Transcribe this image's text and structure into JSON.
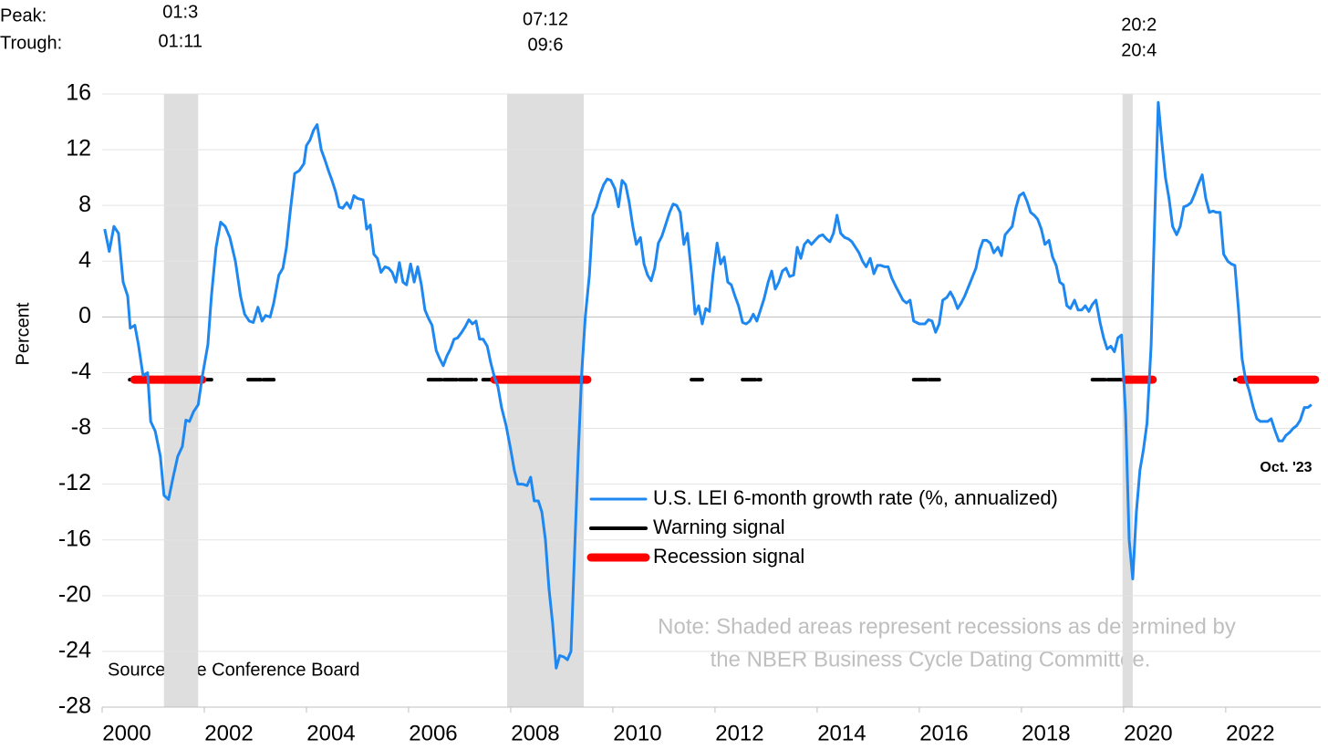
{
  "chart_data": {
    "type": "line",
    "y_label": "Percent",
    "peak_label": "Peak:",
    "trough_label": "Trough:",
    "source": "Source: The Conference Board",
    "note": [
      "Note: Shaded areas represent recessions as determined by",
      "the NBER Business Cycle Dating Committee."
    ],
    "end_annotation": "Oct. '23",
    "xlim": [
      2000,
      2023.86
    ],
    "xticks": [
      2000,
      2002,
      2004,
      2006,
      2008,
      2010,
      2012,
      2014,
      2016,
      2018,
      2020,
      2022
    ],
    "ylim": [
      -28,
      16
    ],
    "yticks": [
      16,
      12,
      8,
      4,
      0,
      -4,
      -8,
      -12,
      -16,
      -20,
      -24,
      -28
    ],
    "grid": true,
    "recessions": [
      {
        "peak": "01:3",
        "trough": "01:11",
        "start": 2001.21,
        "end": 2001.88
      },
      {
        "peak": "07:12",
        "trough": "09:6",
        "start": 2007.93,
        "end": 2009.43
      },
      {
        "peak": "20:2",
        "trough": "20:4",
        "start": 2019.98,
        "end": 2020.18
      }
    ],
    "series": [
      {
        "name": "U.S. LEI 6-month growth rate (%, annualized)",
        "color": "#1e88f0",
        "x": [
          2000.05,
          2000.14,
          2000.23,
          2000.32,
          2000.41,
          2000.5,
          2000.55,
          2000.64,
          2000.71,
          2000.8,
          2000.89,
          2000.95,
          2001.04,
          2001.14,
          2001.21,
          2001.3,
          2001.39,
          2001.48,
          2001.57,
          2001.64,
          2001.71,
          2001.79,
          2001.88,
          2001.96,
          2002.07,
          2002.14,
          2002.23,
          2002.32,
          2002.41,
          2002.5,
          2002.61,
          2002.71,
          2002.79,
          2002.88,
          2002.96,
          2003.05,
          2003.13,
          2003.2,
          2003.29,
          2003.36,
          2003.46,
          2003.54,
          2003.61,
          2003.68,
          2003.77,
          2003.86,
          2003.95,
          2004,
          2004.07,
          2004.14,
          2004.21,
          2004.29,
          2004.36,
          2004.43,
          2004.5,
          2004.57,
          2004.64,
          2004.71,
          2004.79,
          2004.86,
          2004.93,
          2005,
          2005.11,
          2005.18,
          2005.25,
          2005.32,
          2005.39,
          2005.46,
          2005.54,
          2005.61,
          2005.68,
          2005.75,
          2005.82,
          2005.89,
          2005.96,
          2006.04,
          2006.11,
          2006.18,
          2006.25,
          2006.32,
          2006.39,
          2006.46,
          2006.54,
          2006.61,
          2006.68,
          2006.75,
          2006.82,
          2006.89,
          2006.96,
          2007.04,
          2007.11,
          2007.18,
          2007.25,
          2007.32,
          2007.39,
          2007.46,
          2007.54,
          2007.61,
          2007.68,
          2007.75,
          2007.82,
          2007.91,
          2008,
          2008.07,
          2008.14,
          2008.23,
          2008.32,
          2008.39,
          2008.46,
          2008.54,
          2008.61,
          2008.68,
          2008.75,
          2008.82,
          2008.89,
          2008.96,
          2009.04,
          2009.11,
          2009.18,
          2009.25,
          2009.32,
          2009.39,
          2009.46,
          2009.54,
          2009.61,
          2009.68,
          2009.75,
          2009.82,
          2009.89,
          2009.96,
          2010.04,
          2010.11,
          2010.18,
          2010.25,
          2010.32,
          2010.39,
          2010.46,
          2010.54,
          2010.61,
          2010.68,
          2010.75,
          2010.82,
          2010.89,
          2010.96,
          2011.04,
          2011.11,
          2011.18,
          2011.25,
          2011.32,
          2011.39,
          2011.46,
          2011.54,
          2011.61,
          2011.68,
          2011.75,
          2011.82,
          2011.89,
          2011.96,
          2012.04,
          2012.11,
          2012.18,
          2012.25,
          2012.32,
          2012.39,
          2012.46,
          2012.54,
          2012.61,
          2012.68,
          2012.75,
          2012.82,
          2012.89,
          2012.96,
          2013.04,
          2013.11,
          2013.18,
          2013.25,
          2013.32,
          2013.39,
          2013.46,
          2013.54,
          2013.61,
          2013.68,
          2013.75,
          2013.82,
          2013.89,
          2013.96,
          2014.04,
          2014.11,
          2014.18,
          2014.25,
          2014.32,
          2014.39,
          2014.46,
          2014.54,
          2014.61,
          2014.68,
          2014.75,
          2014.82,
          2014.89,
          2014.96,
          2015.04,
          2015.11,
          2015.18,
          2015.25,
          2015.32,
          2015.39,
          2015.46,
          2015.54,
          2015.61,
          2015.68,
          2015.75,
          2015.82,
          2015.89,
          2016,
          2016.11,
          2016.18,
          2016.25,
          2016.32,
          2016.39,
          2016.46,
          2016.54,
          2016.61,
          2016.68,
          2016.75,
          2016.82,
          2016.89,
          2017,
          2017.11,
          2017.18,
          2017.25,
          2017.32,
          2017.39,
          2017.46,
          2017.54,
          2017.61,
          2017.68,
          2017.75,
          2017.82,
          2017.89,
          2017.96,
          2018.04,
          2018.11,
          2018.18,
          2018.25,
          2018.32,
          2018.39,
          2018.46,
          2018.54,
          2018.61,
          2018.68,
          2018.75,
          2018.82,
          2018.89,
          2018.96,
          2019.04,
          2019.11,
          2019.18,
          2019.25,
          2019.32,
          2019.39,
          2019.46,
          2019.54,
          2019.61,
          2019.68,
          2019.75,
          2019.82,
          2019.89,
          2019.96,
          2020.04,
          2020.11,
          2020.18,
          2020.25,
          2020.32,
          2020.39,
          2020.46,
          2020.54,
          2020.61,
          2020.68,
          2020.75,
          2020.82,
          2020.89,
          2020.96,
          2021.04,
          2021.11,
          2021.18,
          2021.25,
          2021.32,
          2021.39,
          2021.46,
          2021.54,
          2021.61,
          2021.68,
          2021.75,
          2021.82,
          2021.89,
          2021.96,
          2022.04,
          2022.11,
          2022.18,
          2022.25,
          2022.32,
          2022.39,
          2022.46,
          2022.54,
          2022.61,
          2022.68,
          2022.75,
          2022.82,
          2022.89,
          2022.96,
          2023.04,
          2023.11,
          2023.18,
          2023.25,
          2023.32,
          2023.39,
          2023.46,
          2023.54,
          2023.61,
          2023.68
        ],
        "values": [
          6.3,
          4.7,
          6.5,
          6,
          2.5,
          1.5,
          -0.8,
          -0.6,
          -2,
          -4.2,
          -4,
          -7.5,
          -8.2,
          -10,
          -12.8,
          -13.1,
          -11.5,
          -10,
          -9.3,
          -7.4,
          -7.5,
          -6.8,
          -6.3,
          -4.3,
          -2,
          1.5,
          5,
          6.8,
          6.5,
          5.7,
          4,
          1.5,
          0.2,
          -0.3,
          -0.4,
          0.7,
          -0.3,
          0.1,
          0,
          1,
          3,
          3.5,
          5,
          7.5,
          10.3,
          10.5,
          11,
          12.3,
          12.7,
          13.4,
          13.8,
          12,
          11.3,
          10.5,
          9.8,
          9,
          7.9,
          7.8,
          8.2,
          7.8,
          8.7,
          8.5,
          8.4,
          6.3,
          6.6,
          4.5,
          4.2,
          3.2,
          3.6,
          3.5,
          3.2,
          2.5,
          3.9,
          2.5,
          2.3,
          3.8,
          2.5,
          3.6,
          2.3,
          0.5,
          -0.1,
          -0.6,
          -2.4,
          -3,
          -3.5,
          -2.8,
          -2.3,
          -1.6,
          -1.5,
          -1.1,
          -0.7,
          -0.2,
          -0.5,
          -0.3,
          -1.6,
          -1.6,
          -2.1,
          -3.3,
          -4.3,
          -5,
          -6.5,
          -7.8,
          -9.5,
          -11,
          -12,
          -12,
          -12.1,
          -11.5,
          -13.2,
          -13.2,
          -14,
          -16,
          -19.5,
          -22,
          -25.2,
          -24.3,
          -24.4,
          -24.6,
          -24,
          -17,
          -10,
          -4,
          0,
          3,
          7.3,
          7.9,
          8.8,
          9.5,
          9.9,
          9.8,
          9.2,
          7.9,
          9.8,
          9.5,
          8.2,
          6.5,
          5.2,
          5.7,
          3.8,
          3,
          2.6,
          3.5,
          5.3,
          5.8,
          6.7,
          7.5,
          8.1,
          8,
          7.5,
          5.2,
          6,
          3.1,
          0.2,
          0.8,
          -0.5,
          0.6,
          0.4,
          3,
          5.3,
          3.8,
          4.3,
          2.5,
          2.3,
          1.5,
          0.8,
          -0.4,
          -0.5,
          -0.3,
          0.2,
          -0.3,
          0.5,
          1.3,
          2.5,
          3.3,
          2,
          2.5,
          3.3,
          3.5,
          2.9,
          3,
          5,
          4.2,
          5.2,
          5.5,
          5.2,
          5.5,
          5.8,
          5.9,
          5.6,
          5.4,
          6,
          7.3,
          6,
          5.7,
          5.6,
          5.4,
          5,
          4.6,
          4,
          3.6,
          4.2,
          3.1,
          3.7,
          3.7,
          3.6,
          3.6,
          2.8,
          2.2,
          1.7,
          1.2,
          1,
          1.2,
          -0.3,
          -0.5,
          -0.5,
          -0.2,
          -0.3,
          -1.1,
          -0.5,
          1.2,
          1.4,
          1.8,
          1.3,
          0.6,
          1,
          1.5,
          2.5,
          3.5,
          4.8,
          5.5,
          5.5,
          5.3,
          4.6,
          5,
          4.4,
          5.9,
          6.2,
          6.5,
          7.8,
          8.7,
          8.9,
          8.3,
          7.5,
          7.3,
          7,
          6.3,
          5.2,
          5.5,
          4.3,
          3.7,
          2.5,
          2.3,
          0.8,
          0.6,
          1.2,
          0.5,
          0.5,
          0.8,
          0.4,
          0.9,
          1.2,
          -0.4,
          -1.5,
          -2.3,
          -2.1,
          -2.5,
          -1.5,
          -1.3,
          -7,
          -16,
          -18.8,
          -14,
          -11,
          -9.5,
          -7.6,
          -2,
          7,
          15.4,
          12.5,
          10,
          8.5,
          6.5,
          5.9,
          6.5,
          7.9,
          8,
          8.2,
          8.8,
          9.5,
          10.2,
          8.5,
          7.5,
          7.6,
          7.5,
          7.5,
          4.5,
          4,
          3.8,
          3.7,
          0.5,
          -3,
          -4.5,
          -5.3,
          -6.5,
          -7.3,
          -7.5,
          -7.5,
          -7.5,
          -7.3,
          -8.1,
          -8.9,
          -8.9,
          -8.5,
          -8.3,
          -8,
          -7.8,
          -7.4,
          -6.5,
          -6.5,
          -6.3
        ]
      },
      {
        "name": "Warning signal",
        "color": "#000000",
        "level": -4.5,
        "periods": [
          [
            2000.54,
            2002.14
          ],
          [
            2002.86,
            2003.36
          ],
          [
            2006.39,
            2007.32
          ],
          [
            2007.46,
            2007.89
          ],
          [
            2011.54,
            2011.75
          ],
          [
            2012.54,
            2012.89
          ],
          [
            2015.89,
            2016.39
          ],
          [
            2019.39,
            2020.04
          ],
          [
            2022.18,
            2023.75
          ]
        ]
      },
      {
        "name": "Recession signal",
        "color": "#ff0000",
        "level": -4.5,
        "periods": [
          [
            2000.63,
            2001.96
          ],
          [
            2007.68,
            2009.5
          ],
          [
            2020.04,
            2020.57
          ],
          [
            2022.29,
            2023.75
          ]
        ]
      }
    ]
  }
}
